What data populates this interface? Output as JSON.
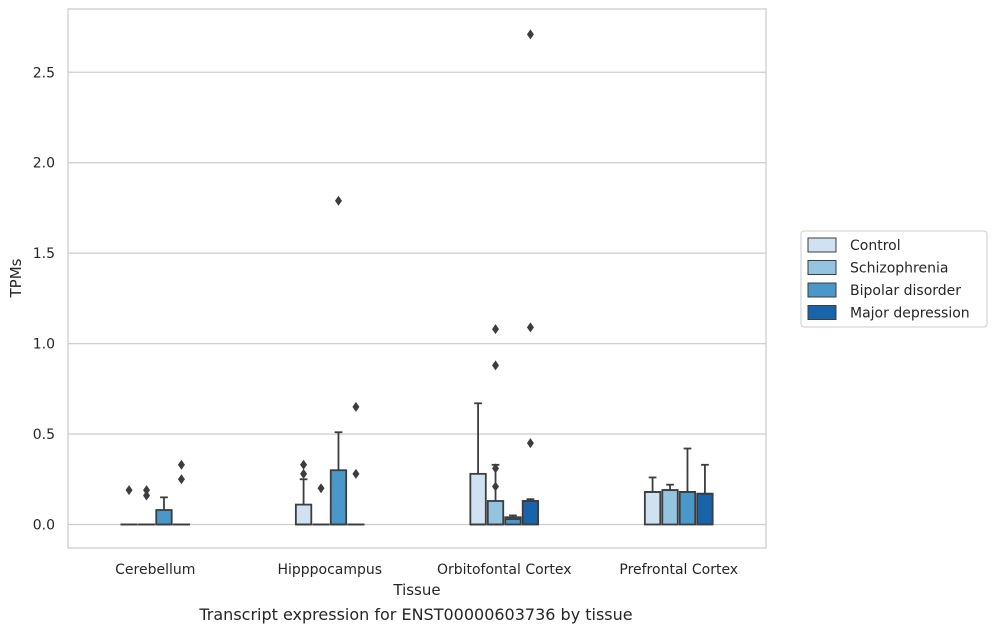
{
  "caption": "Transcript expression for ENST00000603736 by tissue",
  "chart_data": {
    "type": "box",
    "xlabel": "Tissue",
    "ylabel": "TPMs",
    "ylim": [
      -0.13,
      2.85
    ],
    "yticks": [
      "0.0",
      "0.5",
      "1.0",
      "1.5",
      "2.0",
      "2.5"
    ],
    "grid": "horizontal",
    "legend_position": "right",
    "categories": [
      "Cerebellum",
      "Hipppocampus",
      "Orbitofontal Cortex",
      "Prefrontal Cortex"
    ],
    "series": [
      {
        "name": "Control",
        "color": "#d0e1f2",
        "boxes": [
          {
            "q1": 0,
            "median": 0,
            "q3": 0,
            "whislo": 0,
            "whishi": 0,
            "fliers": [
              0.19
            ]
          },
          {
            "q1": 0,
            "median": 0,
            "q3": 0.11,
            "whislo": 0,
            "whishi": 0.25,
            "fliers": [
              0.28,
              0.33
            ]
          },
          {
            "q1": 0,
            "median": 0,
            "q3": 0.28,
            "whislo": 0,
            "whishi": 0.67,
            "fliers": []
          },
          {
            "q1": 0,
            "median": 0.18,
            "q3": 0.18,
            "whislo": 0,
            "whishi": 0.26,
            "fliers": []
          }
        ]
      },
      {
        "name": "Schizophrenia",
        "color": "#94c4df",
        "boxes": [
          {
            "q1": 0,
            "median": 0,
            "q3": 0,
            "whislo": 0,
            "whishi": 0,
            "fliers": [
              0.16,
              0.19
            ]
          },
          {
            "q1": 0,
            "median": 0,
            "q3": 0,
            "whislo": 0,
            "whishi": 0,
            "fliers": [
              0.2
            ]
          },
          {
            "q1": 0,
            "median": 0,
            "q3": 0.13,
            "whislo": 0,
            "whishi": 0.33,
            "fliers": [
              0.21,
              0.31,
              0.88,
              1.08
            ]
          },
          {
            "q1": 0,
            "median": 0.19,
            "q3": 0.19,
            "whislo": 0,
            "whishi": 0.22,
            "fliers": []
          }
        ]
      },
      {
        "name": "Bipolar disorder",
        "color": "#4a98c9",
        "boxes": [
          {
            "q1": 0,
            "median": 0,
            "q3": 0.08,
            "whislo": 0,
            "whishi": 0.15,
            "fliers": []
          },
          {
            "q1": 0,
            "median": 0,
            "q3": 0.3,
            "whislo": 0,
            "whishi": 0.51,
            "fliers": [
              1.79
            ]
          },
          {
            "q1": 0,
            "median": 0.03,
            "q3": 0.04,
            "whislo": 0,
            "whishi": 0.05,
            "fliers": []
          },
          {
            "q1": 0,
            "median": 0.18,
            "q3": 0.18,
            "whislo": 0,
            "whishi": 0.42,
            "fliers": []
          }
        ]
      },
      {
        "name": "Major depression",
        "color": "#1764ab",
        "boxes": [
          {
            "q1": 0,
            "median": 0,
            "q3": 0,
            "whislo": 0,
            "whishi": 0,
            "fliers": [
              0.25,
              0.33
            ]
          },
          {
            "q1": 0,
            "median": 0,
            "q3": 0,
            "whislo": 0,
            "whishi": 0,
            "fliers": [
              0.28,
              0.65
            ]
          },
          {
            "q1": 0,
            "median": 0.13,
            "q3": 0.13,
            "whislo": 0,
            "whishi": 0.14,
            "fliers": [
              0.45,
              1.09,
              2.71
            ]
          },
          {
            "q1": 0,
            "median": 0.17,
            "q3": 0.17,
            "whislo": 0,
            "whishi": 0.33,
            "fliers": []
          }
        ]
      }
    ]
  }
}
